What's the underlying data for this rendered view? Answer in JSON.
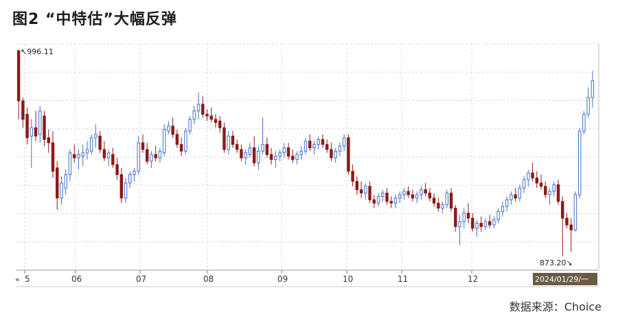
{
  "title": "图2 “中特估”大幅反弹",
  "source": "数据来源：Choice",
  "colors": {
    "up": "#3f6fd1",
    "down": "#8b1a1a",
    "grid": "#d8d8d8",
    "cursor_label_bg": "#6b5a44",
    "cursor_label_text": "#ffffff"
  },
  "chart_data": {
    "type": "candlestick",
    "xlabel": "",
    "ylabel": "",
    "ylim": [
      865,
      1000
    ],
    "x_ticks": [
      "5",
      "06",
      "07",
      "08",
      "09",
      "10",
      "11",
      "12"
    ],
    "scroll_marker": "«",
    "cursor_label": "2024/01/29/一",
    "max_label": "996.11",
    "min_label": "873.20",
    "grid": true,
    "candles": [
      {
        "o": 996,
        "h": 996,
        "l": 955,
        "c": 966
      },
      {
        "o": 966,
        "h": 968,
        "l": 950,
        "c": 955
      },
      {
        "o": 958,
        "h": 962,
        "l": 940,
        "c": 944
      },
      {
        "o": 945,
        "h": 955,
        "l": 926,
        "c": 950
      },
      {
        "o": 950,
        "h": 960,
        "l": 942,
        "c": 945
      },
      {
        "o": 946,
        "h": 963,
        "l": 941,
        "c": 960
      },
      {
        "o": 957,
        "h": 960,
        "l": 939,
        "c": 943
      },
      {
        "o": 944,
        "h": 949,
        "l": 935,
        "c": 941
      },
      {
        "o": 941,
        "h": 948,
        "l": 920,
        "c": 924
      },
      {
        "o": 926,
        "h": 930,
        "l": 901,
        "c": 908
      },
      {
        "o": 908,
        "h": 921,
        "l": 904,
        "c": 917
      },
      {
        "o": 914,
        "h": 925,
        "l": 910,
        "c": 922
      },
      {
        "o": 922,
        "h": 937,
        "l": 918,
        "c": 935
      },
      {
        "o": 934,
        "h": 940,
        "l": 929,
        "c": 932
      },
      {
        "o": 932,
        "h": 937,
        "l": 925,
        "c": 934
      },
      {
        "o": 933,
        "h": 940,
        "l": 927,
        "c": 935
      },
      {
        "o": 935,
        "h": 942,
        "l": 931,
        "c": 937
      },
      {
        "o": 936,
        "h": 946,
        "l": 934,
        "c": 944
      },
      {
        "o": 944,
        "h": 952,
        "l": 938,
        "c": 946
      },
      {
        "o": 945,
        "h": 948,
        "l": 935,
        "c": 937
      },
      {
        "o": 937,
        "h": 942,
        "l": 930,
        "c": 932
      },
      {
        "o": 932,
        "h": 937,
        "l": 927,
        "c": 935
      },
      {
        "o": 934,
        "h": 938,
        "l": 926,
        "c": 928
      },
      {
        "o": 928,
        "h": 932,
        "l": 919,
        "c": 922
      },
      {
        "o": 922,
        "h": 926,
        "l": 905,
        "c": 908
      },
      {
        "o": 908,
        "h": 920,
        "l": 905,
        "c": 917
      },
      {
        "o": 917,
        "h": 924,
        "l": 914,
        "c": 922
      },
      {
        "o": 922,
        "h": 926,
        "l": 918,
        "c": 924
      },
      {
        "o": 924,
        "h": 945,
        "l": 922,
        "c": 941
      },
      {
        "o": 941,
        "h": 946,
        "l": 935,
        "c": 937
      },
      {
        "o": 937,
        "h": 941,
        "l": 928,
        "c": 930
      },
      {
        "o": 930,
        "h": 936,
        "l": 926,
        "c": 934
      },
      {
        "o": 934,
        "h": 939,
        "l": 930,
        "c": 932
      },
      {
        "o": 932,
        "h": 938,
        "l": 929,
        "c": 936
      },
      {
        "o": 935,
        "h": 952,
        "l": 933,
        "c": 949
      },
      {
        "o": 948,
        "h": 954,
        "l": 946,
        "c": 951
      },
      {
        "o": 951,
        "h": 956,
        "l": 944,
        "c": 946
      },
      {
        "o": 946,
        "h": 949,
        "l": 938,
        "c": 940
      },
      {
        "o": 940,
        "h": 944,
        "l": 933,
        "c": 936
      },
      {
        "o": 936,
        "h": 950,
        "l": 934,
        "c": 948
      },
      {
        "o": 948,
        "h": 957,
        "l": 946,
        "c": 955
      },
      {
        "o": 955,
        "h": 963,
        "l": 952,
        "c": 960
      },
      {
        "o": 960,
        "h": 971,
        "l": 955,
        "c": 964
      },
      {
        "o": 964,
        "h": 969,
        "l": 956,
        "c": 958
      },
      {
        "o": 958,
        "h": 961,
        "l": 954,
        "c": 957
      },
      {
        "o": 957,
        "h": 962,
        "l": 953,
        "c": 955
      },
      {
        "o": 955,
        "h": 958,
        "l": 950,
        "c": 953
      },
      {
        "o": 954,
        "h": 957,
        "l": 947,
        "c": 950
      },
      {
        "o": 950,
        "h": 953,
        "l": 935,
        "c": 937
      },
      {
        "o": 937,
        "h": 948,
        "l": 934,
        "c": 945
      },
      {
        "o": 945,
        "h": 948,
        "l": 938,
        "c": 940
      },
      {
        "o": 940,
        "h": 943,
        "l": 935,
        "c": 937
      },
      {
        "o": 937,
        "h": 940,
        "l": 930,
        "c": 932
      },
      {
        "o": 932,
        "h": 937,
        "l": 928,
        "c": 935
      },
      {
        "o": 934,
        "h": 941,
        "l": 932,
        "c": 938
      },
      {
        "o": 938,
        "h": 945,
        "l": 927,
        "c": 929
      },
      {
        "o": 929,
        "h": 939,
        "l": 925,
        "c": 936
      },
      {
        "o": 936,
        "h": 956,
        "l": 934,
        "c": 940
      },
      {
        "o": 940,
        "h": 944,
        "l": 932,
        "c": 934
      },
      {
        "o": 934,
        "h": 938,
        "l": 928,
        "c": 931
      },
      {
        "o": 931,
        "h": 936,
        "l": 926,
        "c": 933
      },
      {
        "o": 933,
        "h": 937,
        "l": 930,
        "c": 935
      },
      {
        "o": 935,
        "h": 941,
        "l": 932,
        "c": 938
      },
      {
        "o": 938,
        "h": 941,
        "l": 931,
        "c": 933
      },
      {
        "o": 933,
        "h": 937,
        "l": 929,
        "c": 931
      },
      {
        "o": 931,
        "h": 936,
        "l": 928,
        "c": 934
      },
      {
        "o": 934,
        "h": 939,
        "l": 931,
        "c": 936
      },
      {
        "o": 936,
        "h": 944,
        "l": 934,
        "c": 942
      },
      {
        "o": 942,
        "h": 946,
        "l": 936,
        "c": 938
      },
      {
        "o": 938,
        "h": 942,
        "l": 934,
        "c": 940
      },
      {
        "o": 940,
        "h": 945,
        "l": 937,
        "c": 943
      },
      {
        "o": 943,
        "h": 946,
        "l": 938,
        "c": 940
      },
      {
        "o": 940,
        "h": 943,
        "l": 935,
        "c": 937
      },
      {
        "o": 937,
        "h": 941,
        "l": 930,
        "c": 932
      },
      {
        "o": 932,
        "h": 938,
        "l": 929,
        "c": 936
      },
      {
        "o": 936,
        "h": 941,
        "l": 933,
        "c": 939
      },
      {
        "o": 939,
        "h": 946,
        "l": 936,
        "c": 944
      },
      {
        "o": 944,
        "h": 946,
        "l": 922,
        "c": 924
      },
      {
        "o": 924,
        "h": 928,
        "l": 915,
        "c": 918
      },
      {
        "o": 918,
        "h": 921,
        "l": 910,
        "c": 913
      },
      {
        "o": 913,
        "h": 918,
        "l": 908,
        "c": 911
      },
      {
        "o": 911,
        "h": 917,
        "l": 907,
        "c": 915
      },
      {
        "o": 915,
        "h": 918,
        "l": 905,
        "c": 907
      },
      {
        "o": 907,
        "h": 910,
        "l": 902,
        "c": 905
      },
      {
        "o": 905,
        "h": 911,
        "l": 903,
        "c": 909
      },
      {
        "o": 909,
        "h": 913,
        "l": 906,
        "c": 911
      },
      {
        "o": 911,
        "h": 914,
        "l": 904,
        "c": 906
      },
      {
        "o": 906,
        "h": 909,
        "l": 902,
        "c": 905
      },
      {
        "o": 905,
        "h": 910,
        "l": 902,
        "c": 908
      },
      {
        "o": 908,
        "h": 912,
        "l": 905,
        "c": 910
      },
      {
        "o": 910,
        "h": 914,
        "l": 907,
        "c": 912
      },
      {
        "o": 912,
        "h": 915,
        "l": 908,
        "c": 910
      },
      {
        "o": 910,
        "h": 913,
        "l": 906,
        "c": 908
      },
      {
        "o": 908,
        "h": 912,
        "l": 905,
        "c": 910
      },
      {
        "o": 910,
        "h": 915,
        "l": 907,
        "c": 913
      },
      {
        "o": 913,
        "h": 917,
        "l": 909,
        "c": 911
      },
      {
        "o": 911,
        "h": 914,
        "l": 906,
        "c": 908
      },
      {
        "o": 908,
        "h": 911,
        "l": 903,
        "c": 905
      },
      {
        "o": 905,
        "h": 908,
        "l": 900,
        "c": 902
      },
      {
        "o": 902,
        "h": 906,
        "l": 899,
        "c": 904
      },
      {
        "o": 904,
        "h": 913,
        "l": 902,
        "c": 911
      },
      {
        "o": 911,
        "h": 914,
        "l": 900,
        "c": 902
      },
      {
        "o": 902,
        "h": 904,
        "l": 888,
        "c": 891
      },
      {
        "o": 891,
        "h": 898,
        "l": 880,
        "c": 894
      },
      {
        "o": 894,
        "h": 902,
        "l": 890,
        "c": 899
      },
      {
        "o": 899,
        "h": 905,
        "l": 893,
        "c": 896
      },
      {
        "o": 896,
        "h": 899,
        "l": 888,
        "c": 890
      },
      {
        "o": 890,
        "h": 895,
        "l": 885,
        "c": 893
      },
      {
        "o": 893,
        "h": 897,
        "l": 888,
        "c": 891
      },
      {
        "o": 891,
        "h": 896,
        "l": 889,
        "c": 894
      },
      {
        "o": 894,
        "h": 898,
        "l": 890,
        "c": 892
      },
      {
        "o": 892,
        "h": 897,
        "l": 890,
        "c": 895
      },
      {
        "o": 895,
        "h": 902,
        "l": 893,
        "c": 900
      },
      {
        "o": 900,
        "h": 906,
        "l": 897,
        "c": 903
      },
      {
        "o": 903,
        "h": 909,
        "l": 900,
        "c": 907
      },
      {
        "o": 907,
        "h": 912,
        "l": 904,
        "c": 910
      },
      {
        "o": 910,
        "h": 914,
        "l": 906,
        "c": 908
      },
      {
        "o": 908,
        "h": 916,
        "l": 906,
        "c": 914
      },
      {
        "o": 914,
        "h": 921,
        "l": 911,
        "c": 919
      },
      {
        "o": 919,
        "h": 925,
        "l": 915,
        "c": 923
      },
      {
        "o": 923,
        "h": 929,
        "l": 918,
        "c": 920
      },
      {
        "o": 920,
        "h": 924,
        "l": 914,
        "c": 917
      },
      {
        "o": 917,
        "h": 922,
        "l": 913,
        "c": 915
      },
      {
        "o": 915,
        "h": 918,
        "l": 908,
        "c": 910
      },
      {
        "o": 910,
        "h": 914,
        "l": 904,
        "c": 912
      },
      {
        "o": 912,
        "h": 918,
        "l": 909,
        "c": 916
      },
      {
        "o": 916,
        "h": 919,
        "l": 904,
        "c": 906
      },
      {
        "o": 906,
        "h": 909,
        "l": 873.2,
        "c": 896
      },
      {
        "o": 896,
        "h": 899,
        "l": 890,
        "c": 892
      },
      {
        "o": 892,
        "h": 896,
        "l": 876,
        "c": 889
      },
      {
        "o": 889,
        "h": 912,
        "l": 888,
        "c": 910
      },
      {
        "o": 910,
        "h": 950,
        "l": 908,
        "c": 948
      },
      {
        "o": 948,
        "h": 960,
        "l": 946,
        "c": 958
      },
      {
        "o": 958,
        "h": 974,
        "l": 956,
        "c": 968
      },
      {
        "o": 968,
        "h": 984,
        "l": 962,
        "c": 978
      }
    ]
  }
}
